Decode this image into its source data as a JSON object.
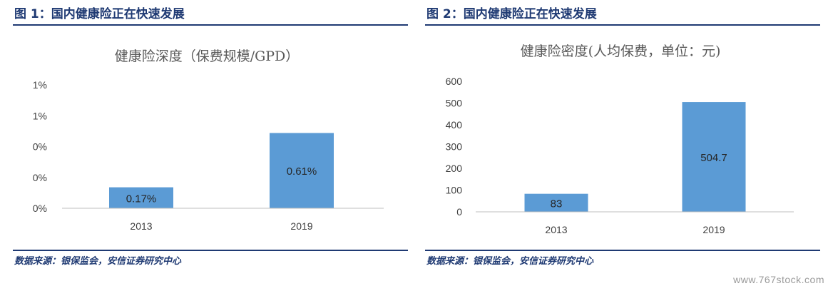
{
  "figures": [
    {
      "heading": "图 1：国内健康险正在快速发展",
      "source": "数据来源：银保监会，安信证券研究中心"
    },
    {
      "heading": "图 2：国内健康险正在快速发展",
      "source": "数据来源：银保监会，安信证券研究中心"
    }
  ],
  "watermark": "www.767stock.com",
  "colors": {
    "bar": "#5b9bd5",
    "heading": "#1f3a73",
    "axis": "#bfbfbf"
  },
  "chart_data": [
    {
      "type": "bar",
      "title": "健康险深度（保费规模/GPD）",
      "categories": [
        "2013",
        "2019"
      ],
      "values": [
        0.17,
        0.61
      ],
      "value_labels": [
        "0.17%",
        "0.61%"
      ],
      "ytick_labels": [
        "0%",
        "0%",
        "0%",
        "1%",
        "1%"
      ],
      "ylim": [
        0,
        1.0
      ],
      "grid": false,
      "legend": "none"
    },
    {
      "type": "bar",
      "title": "健康险密度(人均保费，单位：元)",
      "categories": [
        "2013",
        "2019"
      ],
      "values": [
        83,
        504.7
      ],
      "value_labels": [
        "83",
        "504.7"
      ],
      "ytick_labels": [
        "0",
        "100",
        "200",
        "300",
        "400",
        "500",
        "600"
      ],
      "ylim": [
        0,
        600
      ],
      "grid": false,
      "legend": "none"
    }
  ]
}
